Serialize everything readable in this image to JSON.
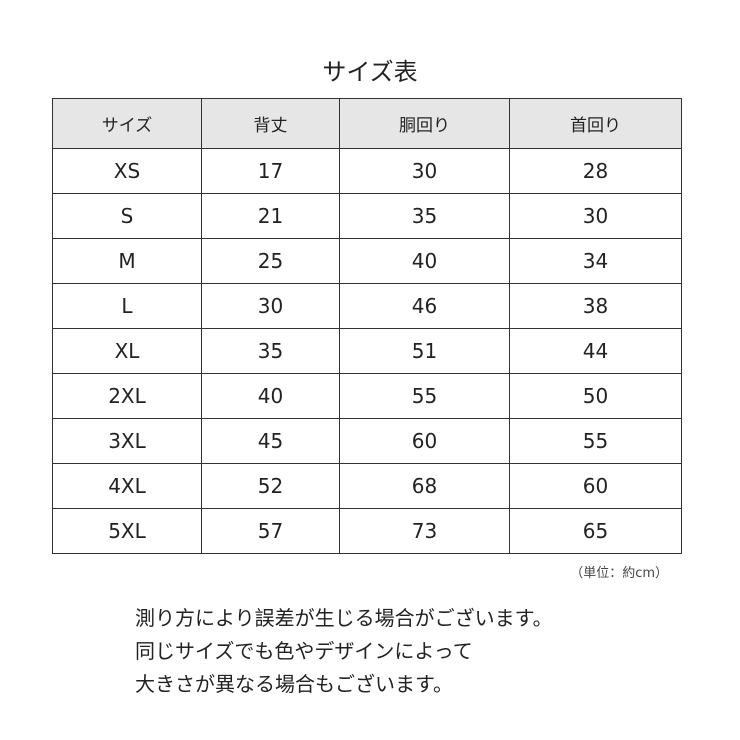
{
  "title": "サイズ表",
  "table": {
    "headers": [
      "サイズ",
      "背丈",
      "胴回り",
      "首回り"
    ],
    "rows": [
      [
        "XS",
        "17",
        "30",
        "28"
      ],
      [
        "S",
        "21",
        "35",
        "30"
      ],
      [
        "M",
        "25",
        "40",
        "34"
      ],
      [
        "L",
        "30",
        "46",
        "38"
      ],
      [
        "XL",
        "35",
        "51",
        "44"
      ],
      [
        "2XL",
        "40",
        "55",
        "50"
      ],
      [
        "3XL",
        "45",
        "60",
        "55"
      ],
      [
        "4XL",
        "52",
        "68",
        "60"
      ],
      [
        "5XL",
        "57",
        "73",
        "65"
      ]
    ]
  },
  "unit": "（単位：約cm）",
  "notes": [
    "測り方により誤差が生じる場合がございます。",
    "同じサイズでも色やデザインによって",
    "大きさが異なる場合もございます。"
  ],
  "colors": {
    "header_bg": "#e6e6e6",
    "border": "#333333"
  }
}
